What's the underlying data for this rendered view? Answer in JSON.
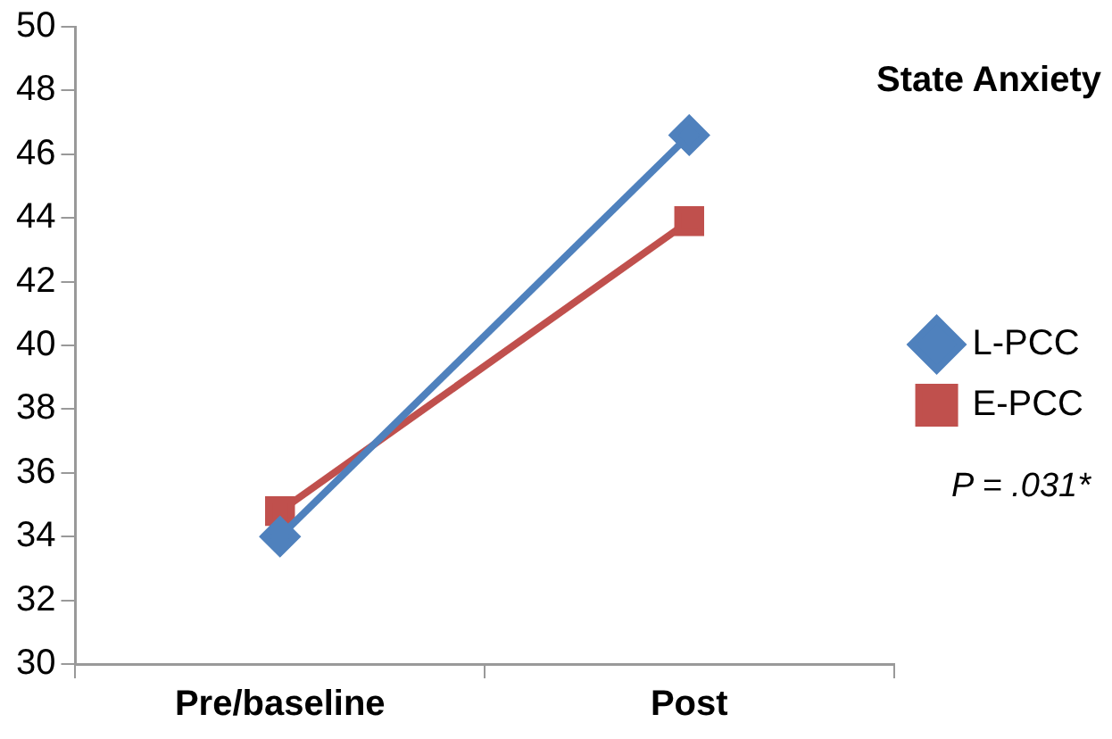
{
  "chart_data": {
    "type": "line",
    "title": "State Anxiety",
    "categories": [
      "Pre/baseline",
      "Post"
    ],
    "series": [
      {
        "name": "L-PCC",
        "color": "#4f81bd",
        "values": [
          34.0,
          46.6
        ],
        "marker": "diamond"
      },
      {
        "name": "E-PCC",
        "color": "#c0504d",
        "values": [
          34.8,
          43.9
        ],
        "marker": "square"
      }
    ],
    "ylim": [
      30,
      50
    ],
    "yticks": [
      30,
      32,
      34,
      36,
      38,
      40,
      42,
      44,
      46,
      48,
      50
    ],
    "grid": false,
    "legend": "right",
    "line_style": "solid",
    "annotations": [
      "P = .031*"
    ]
  }
}
